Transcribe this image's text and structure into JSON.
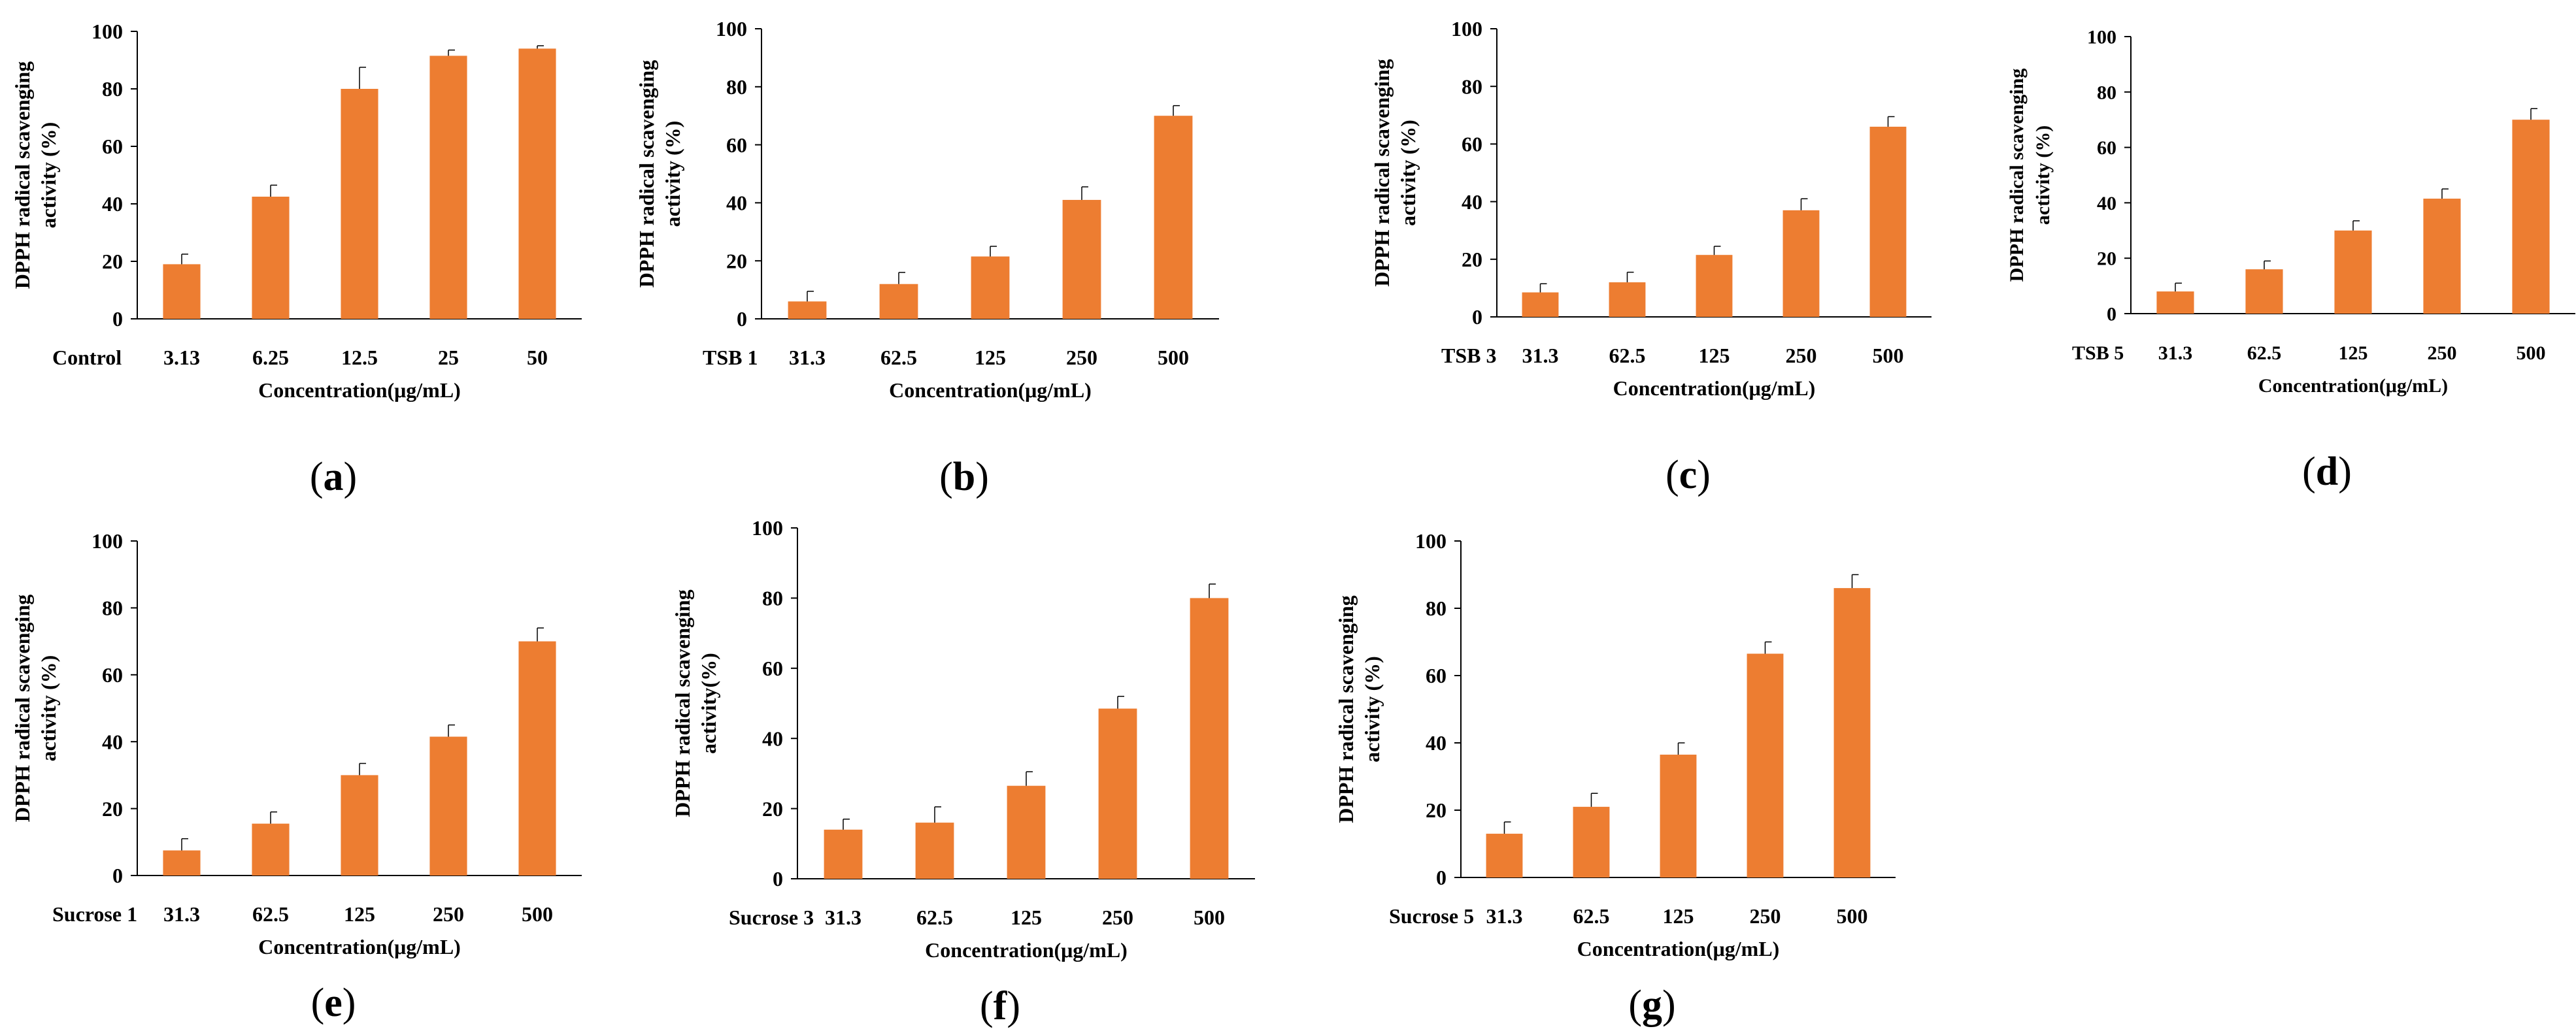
{
  "figure": {
    "bar_color": "#ED7D31",
    "axis_color": "#000000"
  },
  "chart_data": [
    {
      "id": "a",
      "panel_label": "(a)",
      "type": "bar",
      "group_label": "Control",
      "categories": [
        "3.13",
        "6.25",
        "12.5",
        "25",
        "50"
      ],
      "values": [
        19,
        42.5,
        80,
        91.5,
        94
      ],
      "errors": [
        3.5,
        4,
        7.5,
        2,
        1
      ],
      "ylabel_line1": "DPPH radical scavenging",
      "ylabel_line2": "activity (%)",
      "xlabel": "Concentration(μg/mL)",
      "ylim": [
        0,
        100
      ],
      "yticks": [
        "0",
        "20",
        "40",
        "60",
        "80",
        "100"
      ]
    },
    {
      "id": "b",
      "panel_label": "(b)",
      "type": "bar",
      "group_label": "TSB 1",
      "categories": [
        "31.3",
        "62.5",
        "125",
        "250",
        "500"
      ],
      "values": [
        6,
        12,
        21.5,
        41,
        70
      ],
      "errors": [
        3.5,
        4,
        3.5,
        4.5,
        3.5
      ],
      "ylabel_line1": "DPPH radical scavenging",
      "ylabel_line2": "activity (%)",
      "xlabel": "Concentration(μg/mL)",
      "ylim": [
        0,
        100
      ],
      "yticks": [
        "0",
        "20",
        "40",
        "60",
        "80",
        "100"
      ]
    },
    {
      "id": "c",
      "panel_label": "(c)",
      "type": "bar",
      "group_label": "TSB 3",
      "categories": [
        "31.3",
        "62.5",
        "125",
        "250",
        "500"
      ],
      "values": [
        8.5,
        12,
        21.5,
        37,
        66
      ],
      "errors": [
        3,
        3.5,
        3,
        4,
        3.5
      ],
      "ylabel_line1": "DPPH radical scavenging",
      "ylabel_line2": "activity (%)",
      "xlabel": "Concentration(μg/mL)",
      "ylim": [
        0,
        100
      ],
      "yticks": [
        "0",
        "20",
        "40",
        "60",
        "80",
        "100"
      ]
    },
    {
      "id": "d",
      "panel_label": "(d)",
      "type": "bar",
      "group_label": "TSB 5",
      "categories": [
        "31.3",
        "62.5",
        "125",
        "250",
        "500"
      ],
      "values": [
        8,
        16,
        30,
        41.5,
        70
      ],
      "errors": [
        3,
        3,
        3.5,
        3.5,
        4
      ],
      "ylabel_line1": "DPPH radical scavenging",
      "ylabel_line2": "activity (%)",
      "xlabel": "Concentration(μg/mL)",
      "ylim": [
        0,
        100
      ],
      "yticks": [
        "0",
        "20",
        "40",
        "60",
        "80",
        "100"
      ]
    },
    {
      "id": "e",
      "panel_label": "(e)",
      "type": "bar",
      "group_label": "Sucrose 1",
      "categories": [
        "31.3",
        "62.5",
        "125",
        "250",
        "500"
      ],
      "values": [
        7.5,
        15.5,
        30,
        41.5,
        70
      ],
      "errors": [
        3.5,
        3.5,
        3.5,
        3.5,
        4
      ],
      "ylabel_line1": "DPPH radical scavenging",
      "ylabel_line2": "activity (%)",
      "xlabel": "Concentration(μg/mL)",
      "ylim": [
        0,
        100
      ],
      "yticks": [
        "0",
        "20",
        "40",
        "60",
        "80",
        "100"
      ]
    },
    {
      "id": "f",
      "panel_label": "(f)",
      "type": "bar",
      "group_label": "Sucrose 3",
      "categories": [
        "31.3",
        "62.5",
        "125",
        "250",
        "500"
      ],
      "values": [
        14,
        16,
        26.5,
        48.5,
        80
      ],
      "errors": [
        3,
        4.5,
        4,
        3.5,
        4
      ],
      "ylabel_line1": "DPPH radical scavenging",
      "ylabel_line2": "activity(%)",
      "xlabel": "Concentration(μg/mL)",
      "ylim": [
        0,
        100
      ],
      "yticks": [
        "0",
        "20",
        "40",
        "60",
        "80",
        "100"
      ]
    },
    {
      "id": "g",
      "panel_label": "(g)",
      "type": "bar",
      "group_label": "Sucrose 5",
      "categories": [
        "31.3",
        "62.5",
        "125",
        "250",
        "500"
      ],
      "values": [
        13,
        21,
        36.5,
        66.5,
        86
      ],
      "errors": [
        3.5,
        4,
        3.5,
        3.5,
        4
      ],
      "ylabel_line1": "DPPH radical scavenging",
      "ylabel_line2": "activity (%)",
      "xlabel": "Concentration(μg/mL)",
      "ylim": [
        0,
        100
      ],
      "yticks": [
        "0",
        "20",
        "40",
        "60",
        "80",
        "100"
      ]
    }
  ]
}
